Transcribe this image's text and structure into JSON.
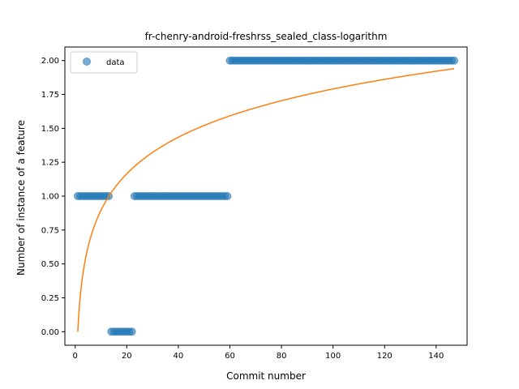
{
  "chart_data": {
    "type": "scatter",
    "title": "fr-chenry-android-freshrss_sealed_class-logarithm",
    "xlabel": "Commit number",
    "ylabel": "Number of instance of a feature",
    "xlim": [
      -4,
      152
    ],
    "ylim": [
      -0.1,
      2.1
    ],
    "xticks": [
      0,
      20,
      40,
      60,
      80,
      100,
      120,
      140
    ],
    "yticks": [
      0.0,
      0.25,
      0.5,
      0.75,
      1.0,
      1.25,
      1.5,
      1.75,
      2.0
    ],
    "xtick_labels": [
      "0",
      "20",
      "40",
      "60",
      "80",
      "100",
      "120",
      "140"
    ],
    "ytick_labels": [
      "0.00",
      "0.25",
      "0.50",
      "0.75",
      "1.00",
      "1.25",
      "1.50",
      "1.75",
      "2.00"
    ],
    "grid": false,
    "legend_position": "upper-left",
    "colors": {
      "data": "#1f77b4",
      "fit": "#ff7f0e"
    },
    "series": [
      {
        "name": "data",
        "kind": "scatter",
        "segments": [
          {
            "x_from": 1,
            "x_to": 13,
            "y": 1
          },
          {
            "x_from": 14,
            "x_to": 22,
            "y": 0
          },
          {
            "x_from": 23,
            "x_to": 59,
            "y": 1
          },
          {
            "x_from": 60,
            "x_to": 147,
            "y": 2
          }
        ]
      },
      {
        "kind": "line",
        "model": "logarithm",
        "a": 0.3888,
        "b": 0.0,
        "x_from": 1,
        "x_to": 147
      }
    ]
  }
}
